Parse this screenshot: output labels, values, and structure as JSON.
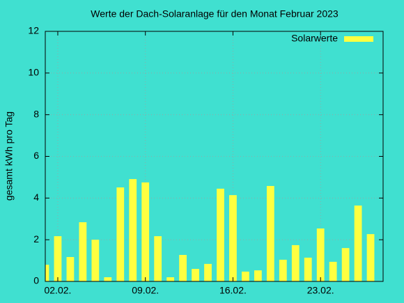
{
  "chart_data": {
    "type": "bar",
    "title": "Werte der Dach-Solaranlage für den Monat Februar 2023",
    "y_label": "gesamt kWh pro Tag",
    "x": [
      1,
      2,
      3,
      4,
      5,
      6,
      7,
      8,
      9,
      10,
      11,
      12,
      13,
      14,
      15,
      16,
      17,
      18,
      19,
      20,
      21,
      22,
      23,
      24,
      25,
      26,
      27
    ],
    "series": [
      {
        "name": "Solarwerte",
        "color": "#ffff40",
        "values": [
          0.8,
          2.17,
          1.17,
          2.84,
          2.0,
          0.2,
          4.51,
          4.91,
          4.75,
          2.17,
          0.2,
          1.27,
          0.6,
          0.84,
          4.45,
          4.14,
          0.47,
          0.53,
          4.58,
          1.04,
          1.74,
          1.14,
          2.54,
          0.94,
          1.6,
          3.64,
          2.27
        ]
      }
    ],
    "xlim": [
      1,
      28
    ],
    "xticks": [
      {
        "value": 2,
        "label": "02.02."
      },
      {
        "value": 9,
        "label": "09.02."
      },
      {
        "value": 16,
        "label": "16.02."
      },
      {
        "value": 23,
        "label": "23.02."
      }
    ],
    "ylim": [
      0,
      12
    ],
    "yticks": [
      0,
      2,
      4,
      6,
      8,
      10,
      12
    ],
    "grid": true,
    "legend": "top-right"
  }
}
